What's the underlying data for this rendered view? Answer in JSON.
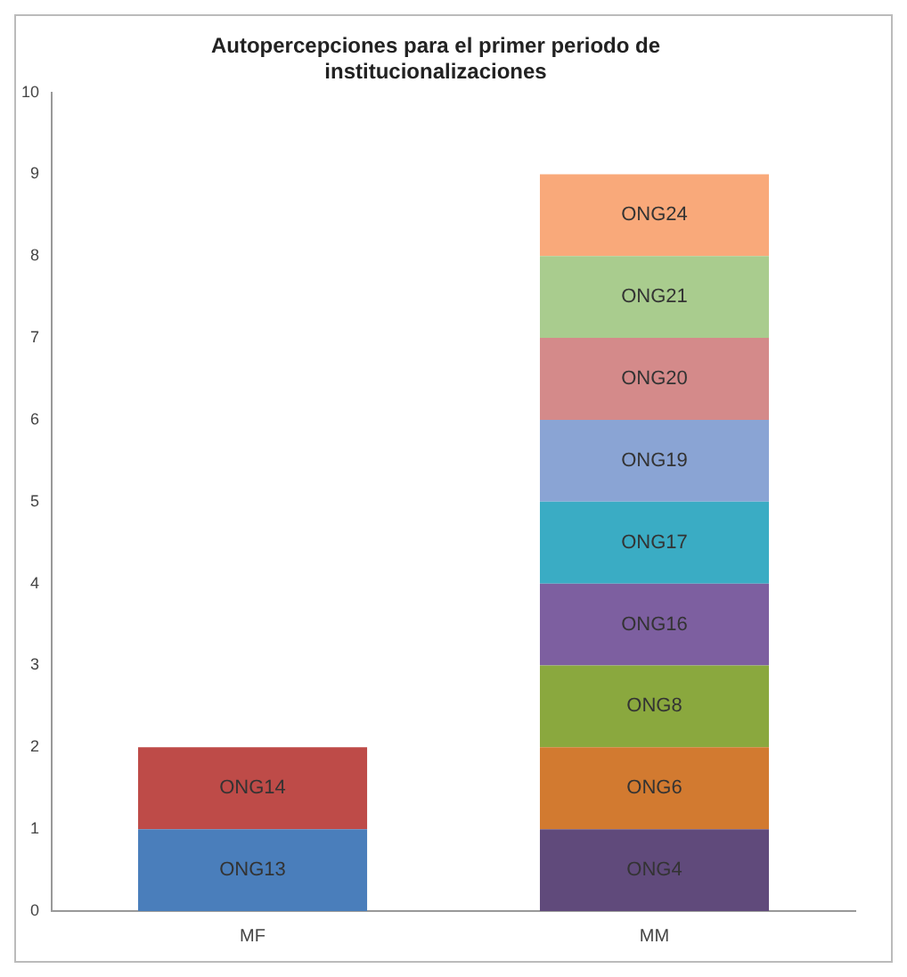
{
  "chart_data": {
    "type": "bar",
    "stacked": true,
    "title": "Autopercepciones para el primer periodo de institucionalizaciones",
    "categories": [
      "MF",
      "MM"
    ],
    "series": [
      {
        "name": "ONG13",
        "color": "#4a7ebb",
        "values": [
          1,
          null
        ]
      },
      {
        "name": "ONG14",
        "color": "#be4b48",
        "values": [
          1,
          null
        ]
      },
      {
        "name": "ONG4",
        "color": "#604a7b",
        "values": [
          null,
          1
        ]
      },
      {
        "name": "ONG6",
        "color": "#d27a30",
        "values": [
          null,
          1
        ]
      },
      {
        "name": "ONG8",
        "color": "#8aa83e",
        "values": [
          null,
          1
        ]
      },
      {
        "name": "ONG16",
        "color": "#7d5fa0",
        "values": [
          null,
          1
        ]
      },
      {
        "name": "ONG17",
        "color": "#3aacc4",
        "values": [
          null,
          1
        ]
      },
      {
        "name": "ONG19",
        "color": "#8aa4d4",
        "values": [
          null,
          1
        ]
      },
      {
        "name": "ONG20",
        "color": "#d48a8a",
        "values": [
          null,
          1
        ]
      },
      {
        "name": "ONG21",
        "color": "#a9cc8e",
        "values": [
          null,
          1
        ]
      },
      {
        "name": "ONG24",
        "color": "#f9a97a",
        "values": [
          null,
          1
        ]
      }
    ],
    "ylim": [
      0,
      10
    ],
    "yticks": [
      0,
      1,
      2,
      3,
      4,
      5,
      6,
      7,
      8,
      9,
      10
    ],
    "grid": false,
    "legend": false
  }
}
